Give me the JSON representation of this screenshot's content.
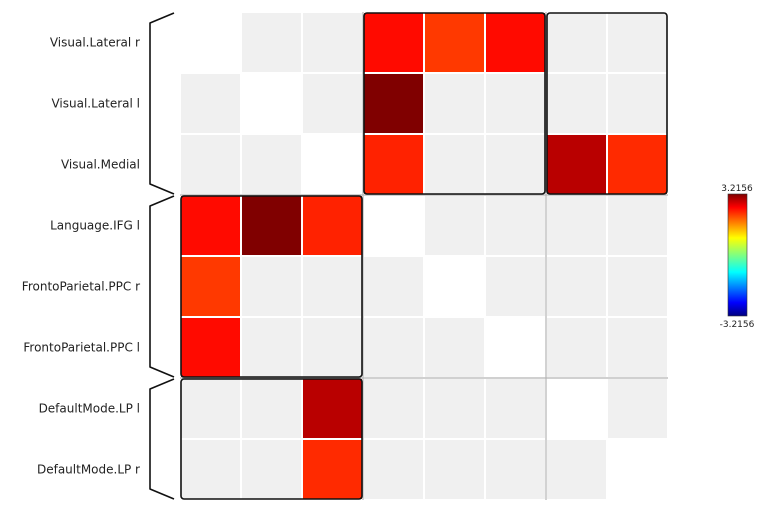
{
  "chart_data": {
    "type": "heatmap",
    "rows": [
      "Visual.Lateral r",
      "Visual.Lateral l",
      "Visual.Medial",
      "Language.IFG l",
      "FrontoParietal.PPC r",
      "FrontoParietal.PPC l",
      "DefaultMode.LP l",
      "DefaultMode.LP r"
    ],
    "columns": 8,
    "values": [
      [
        null,
        0,
        0,
        2.35,
        2.05,
        2.35,
        0,
        0
      ],
      [
        0,
        null,
        0,
        3.2156,
        0,
        0,
        0,
        0
      ],
      [
        0,
        0,
        null,
        2.2,
        0,
        0,
        2.85,
        2.15
      ],
      [
        2.35,
        3.2156,
        2.2,
        null,
        0,
        0,
        0,
        0
      ],
      [
        2.05,
        0,
        0,
        0,
        null,
        0,
        0,
        0
      ],
      [
        2.35,
        0,
        0,
        0,
        0,
        null,
        0,
        0
      ],
      [
        0,
        0,
        2.85,
        0,
        0,
        0,
        null,
        0
      ],
      [
        0,
        0,
        2.15,
        0,
        0,
        0,
        0,
        null
      ]
    ],
    "zero_color": "#f0f0f0",
    "diagonal_color": "#ffffff",
    "colormap": "jet",
    "colorbar": {
      "max_label": "3.2156",
      "min_label": "-3.2156",
      "min": -3.2156,
      "max": 3.2156
    },
    "groups": [
      {
        "rows": [
          0,
          2
        ]
      },
      {
        "rows": [
          3,
          5
        ]
      },
      {
        "rows": [
          6,
          7
        ]
      }
    ],
    "grid": true,
    "legend": "right"
  }
}
